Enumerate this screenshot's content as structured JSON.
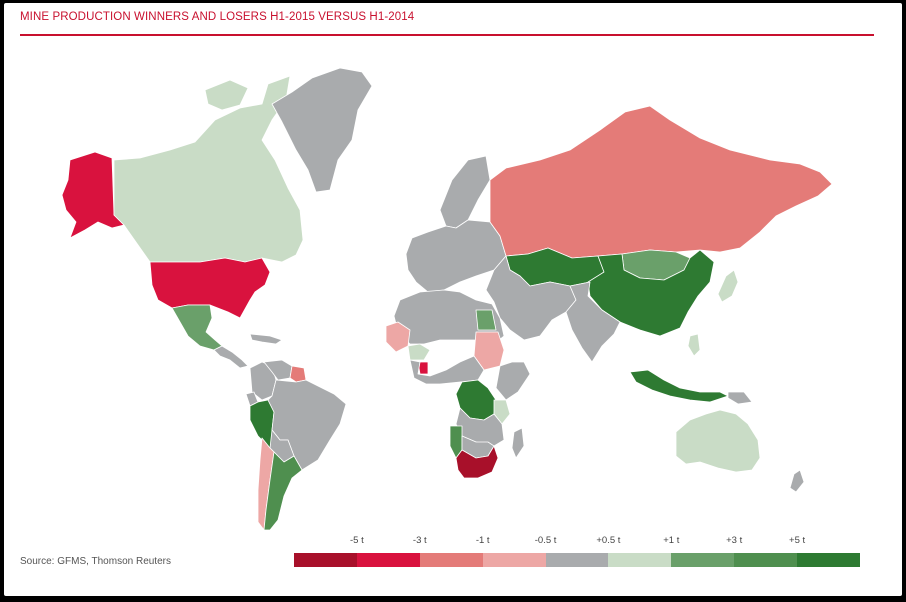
{
  "title": "MINE PRODUCTION WINNERS AND LOSERS H1-2015 VERSUS H1-2014",
  "source": "Source: GFMS, Thomson Reuters",
  "colors": {
    "title_red": "#c8102e",
    "ocean": "#ffffff",
    "border": "#ffffff"
  },
  "legend": {
    "ticks": [
      "-5 t",
      "-3 t",
      "-1 t",
      "-0.5 t",
      "+0.5 t",
      "+1 t",
      "+3 t",
      "+5 t"
    ],
    "swatches": [
      {
        "color": "#a8102a"
      },
      {
        "color": "#d9123e"
      },
      {
        "color": "#e47b78"
      },
      {
        "color": "#eda7a5"
      },
      {
        "color": "#a9abad"
      },
      {
        "color": "#c9dcc6"
      },
      {
        "color": "#6aa06a"
      },
      {
        "color": "#4f8f4f"
      },
      {
        "color": "#2e7a32"
      }
    ]
  },
  "map": {
    "regions": [
      {
        "name": "alaska",
        "category": 1
      },
      {
        "name": "canada",
        "category": 5
      },
      {
        "name": "greenland",
        "category": 4
      },
      {
        "name": "usa",
        "category": 1
      },
      {
        "name": "mexico",
        "category": 6
      },
      {
        "name": "central-america",
        "category": 4
      },
      {
        "name": "caribbean",
        "category": 4
      },
      {
        "name": "colombia",
        "category": 4
      },
      {
        "name": "venezuela",
        "category": 4
      },
      {
        "name": "guyana",
        "category": 2
      },
      {
        "name": "peru",
        "category": 8
      },
      {
        "name": "ecuador",
        "category": 4
      },
      {
        "name": "brazil",
        "category": 4
      },
      {
        "name": "bolivia",
        "category": 4
      },
      {
        "name": "chile",
        "category": 3
      },
      {
        "name": "argentina",
        "category": 7
      },
      {
        "name": "europe",
        "category": 4
      },
      {
        "name": "scandinavia",
        "category": 4
      },
      {
        "name": "russia",
        "category": 2
      },
      {
        "name": "kazakhstan",
        "category": 8
      },
      {
        "name": "mongolia",
        "category": 6
      },
      {
        "name": "china",
        "category": 8
      },
      {
        "name": "india",
        "category": 4
      },
      {
        "name": "middle-east",
        "category": 4
      },
      {
        "name": "north-africa",
        "category": 4
      },
      {
        "name": "mauritania-mali",
        "category": 3
      },
      {
        "name": "burkina-faso",
        "category": 5
      },
      {
        "name": "ghana",
        "category": 1
      },
      {
        "name": "sudan",
        "category": 3
      },
      {
        "name": "egypt",
        "category": 6
      },
      {
        "name": "drc",
        "category": 8
      },
      {
        "name": "tanzania",
        "category": 5
      },
      {
        "name": "namibia",
        "category": 7
      },
      {
        "name": "botswana-zimbabwe",
        "category": 4
      },
      {
        "name": "south-africa",
        "category": 0
      },
      {
        "name": "madagascar",
        "category": 4
      },
      {
        "name": "japan",
        "category": 5
      },
      {
        "name": "philippines",
        "category": 5
      },
      {
        "name": "indonesia",
        "category": 8
      },
      {
        "name": "papua-new-guinea",
        "category": 4
      },
      {
        "name": "australia",
        "category": 5
      },
      {
        "name": "new-zealand",
        "category": 4
      }
    ]
  }
}
